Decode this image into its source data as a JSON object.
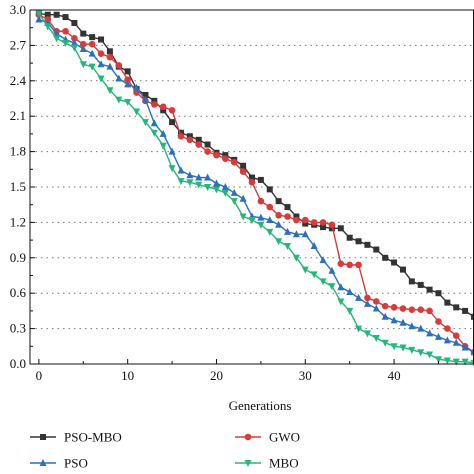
{
  "chart_data": {
    "type": "line",
    "title": "",
    "xlabel": "Generations",
    "ylabel": "",
    "xlim": [
      -1,
      49
    ],
    "ylim": [
      0,
      3.0
    ],
    "xticks": [
      "0",
      "10",
      "20",
      "30",
      "40"
    ],
    "yticks": [
      "0.0",
      "0.3",
      "0.6",
      "0.9",
      "1.2",
      "1.5",
      "1.8",
      "2.1",
      "2.4",
      "2.7",
      "3.0"
    ],
    "grid": "horizontal-dotted",
    "legend_position": "bottom",
    "x": [
      0,
      1,
      2,
      3,
      4,
      5,
      6,
      7,
      8,
      9,
      10,
      11,
      12,
      13,
      14,
      15,
      16,
      17,
      18,
      19,
      20,
      21,
      22,
      23,
      24,
      25,
      26,
      27,
      28,
      29,
      30,
      31,
      32,
      33,
      34,
      35,
      36,
      37,
      38,
      39,
      40,
      41,
      42,
      43,
      44,
      45,
      46,
      47,
      48,
      49
    ],
    "series": [
      {
        "name": "PSO-MBO",
        "color": "#333333",
        "marker": "square",
        "values": [
          2.97,
          2.96,
          2.96,
          2.94,
          2.89,
          2.8,
          2.77,
          2.75,
          2.65,
          2.52,
          2.48,
          2.33,
          2.28,
          2.23,
          2.15,
          2.05,
          1.96,
          1.93,
          1.9,
          1.86,
          1.79,
          1.77,
          1.73,
          1.68,
          1.58,
          1.56,
          1.48,
          1.38,
          1.33,
          1.25,
          1.19,
          1.18,
          1.16,
          1.15,
          1.15,
          1.07,
          1.04,
          1.01,
          0.97,
          0.9,
          0.86,
          0.8,
          0.7,
          0.67,
          0.63,
          0.6,
          0.52,
          0.48,
          0.45,
          0.4
        ]
      },
      {
        "name": "GWO",
        "color": "#d93a3a",
        "marker": "circle",
        "values": [
          2.96,
          2.92,
          2.82,
          2.82,
          2.76,
          2.71,
          2.71,
          2.63,
          2.6,
          2.53,
          2.41,
          2.3,
          2.23,
          2.2,
          2.18,
          2.15,
          1.93,
          1.9,
          1.86,
          1.8,
          1.77,
          1.74,
          1.71,
          1.63,
          1.54,
          1.38,
          1.33,
          1.26,
          1.25,
          1.22,
          1.22,
          1.2,
          1.2,
          1.18,
          0.85,
          0.84,
          0.84,
          0.56,
          0.53,
          0.49,
          0.48,
          0.47,
          0.46,
          0.46,
          0.45,
          0.36,
          0.3,
          0.24,
          0.15,
          0.1
        ]
      },
      {
        "name": "PSO",
        "color": "#2b6fbf",
        "marker": "triangle-up",
        "values": [
          2.92,
          2.89,
          2.8,
          2.75,
          2.72,
          2.67,
          2.63,
          2.54,
          2.52,
          2.42,
          2.37,
          2.34,
          2.24,
          2.04,
          1.95,
          1.8,
          1.64,
          1.6,
          1.58,
          1.58,
          1.53,
          1.5,
          1.45,
          1.4,
          1.25,
          1.24,
          1.22,
          1.18,
          1.12,
          1.1,
          1.1,
          1.0,
          0.88,
          0.79,
          0.65,
          0.61,
          0.56,
          0.51,
          0.47,
          0.4,
          0.37,
          0.35,
          0.32,
          0.3,
          0.26,
          0.23,
          0.2,
          0.18,
          0.14,
          0.1
        ]
      },
      {
        "name": "MBO",
        "color": "#23b87a",
        "marker": "triangle-down",
        "values": [
          2.97,
          2.86,
          2.76,
          2.72,
          2.68,
          2.54,
          2.52,
          2.42,
          2.32,
          2.24,
          2.22,
          2.14,
          2.05,
          1.96,
          1.85,
          1.66,
          1.55,
          1.54,
          1.52,
          1.5,
          1.48,
          1.45,
          1.38,
          1.25,
          1.22,
          1.18,
          1.12,
          1.04,
          1.0,
          0.9,
          0.8,
          0.76,
          0.7,
          0.66,
          0.53,
          0.45,
          0.3,
          0.26,
          0.22,
          0.18,
          0.15,
          0.14,
          0.12,
          0.1,
          0.08,
          0.04,
          0.03,
          0.02,
          0.02,
          0.01
        ]
      }
    ]
  }
}
